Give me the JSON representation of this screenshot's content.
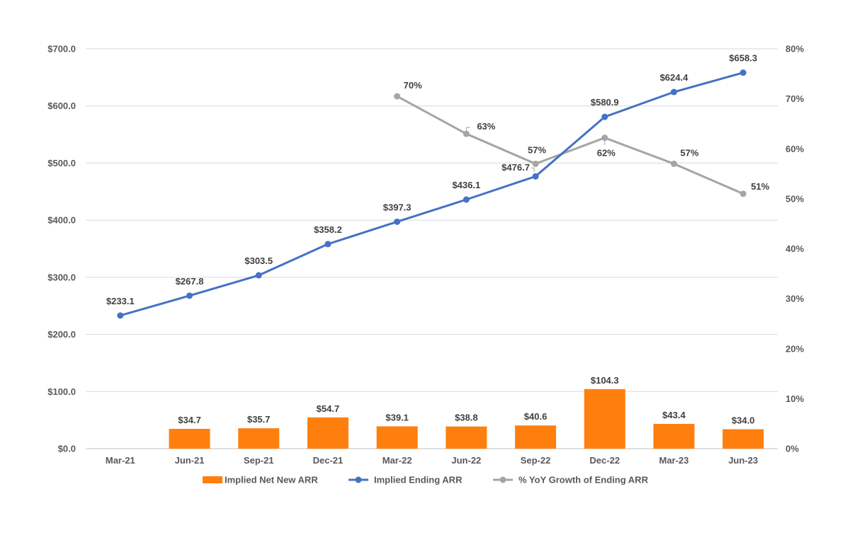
{
  "chart_data": {
    "type": "bar",
    "categories": [
      "Mar-21",
      "Jun-21",
      "Sep-21",
      "Dec-21",
      "Mar-22",
      "Jun-22",
      "Sep-22",
      "Dec-22",
      "Mar-23",
      "Jun-23"
    ],
    "series": [
      {
        "name": "Implied Net New ARR",
        "type": "bar",
        "axis": "left",
        "values": [
          null,
          34.7,
          35.7,
          54.7,
          39.1,
          38.8,
          40.6,
          104.3,
          43.4,
          34.0
        ],
        "labels": [
          "",
          "$34.7",
          "$35.7",
          "$54.7",
          "$39.1",
          "$38.8",
          "$40.6",
          "$104.3",
          "$43.4",
          "$34.0"
        ],
        "color": "#ff7f0e"
      },
      {
        "name": "Implied Ending ARR",
        "type": "line",
        "axis": "left",
        "values": [
          233.1,
          267.8,
          303.5,
          358.2,
          397.3,
          436.1,
          476.7,
          580.9,
          624.4,
          658.3
        ],
        "labels": [
          "$233.1",
          "$267.8",
          "$303.5",
          "$358.2",
          "$397.3",
          "$436.1",
          "$476.7",
          "$580.9",
          "$624.4",
          "$658.3"
        ],
        "color": "#4472c4"
      },
      {
        "name": "% YoY Growth of Ending ARR",
        "type": "line",
        "axis": "right",
        "values": [
          null,
          null,
          null,
          null,
          70.5,
          63,
          57,
          62.2,
          57,
          51
        ],
        "labels": [
          "",
          "",
          "",
          "",
          "70%",
          "63%",
          "57%",
          "62%",
          "57%",
          "51%"
        ],
        "color": "#a5a5a5"
      }
    ],
    "y_left": {
      "range": [
        0,
        700
      ],
      "ticks": [
        0,
        100,
        200,
        300,
        400,
        500,
        600,
        700
      ],
      "tick_labels": [
        "$0.0",
        "$100.0",
        "$200.0",
        "$300.0",
        "$400.0",
        "$500.0",
        "$600.0",
        "$700.0"
      ]
    },
    "y_right": {
      "range": [
        0,
        80
      ],
      "ticks": [
        0,
        10,
        20,
        30,
        40,
        50,
        60,
        70,
        80
      ],
      "tick_labels": [
        "0%",
        "10%",
        "20%",
        "30%",
        "40%",
        "50%",
        "60%",
        "70%",
        "80%"
      ]
    },
    "grid": true,
    "legend": "bottom",
    "title": "",
    "xlabel": "",
    "ylabel": ""
  }
}
